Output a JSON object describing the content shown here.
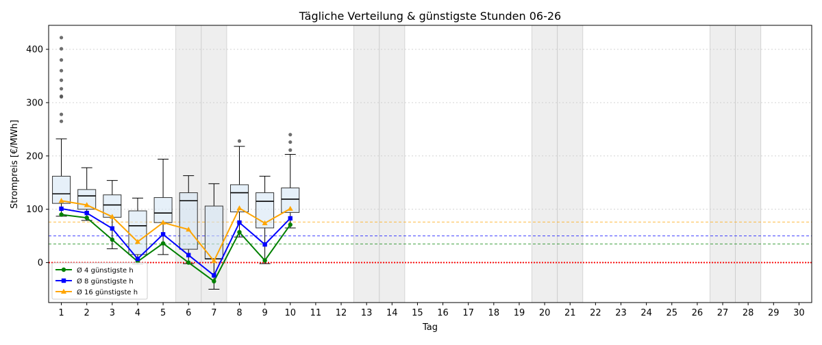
{
  "chart_data": {
    "type": "box",
    "title": "Tägliche Verteilung & günstigste Stunden 06-26",
    "xlabel": "Tag",
    "ylabel": "Strompreis [€/MWh]",
    "xlim": [
      0.5,
      30.5
    ],
    "ylim": [
      -75,
      445
    ],
    "x_ticks": [
      1,
      2,
      3,
      4,
      5,
      6,
      7,
      8,
      9,
      10,
      11,
      12,
      13,
      14,
      15,
      16,
      17,
      18,
      19,
      20,
      21,
      22,
      23,
      24,
      25,
      26,
      27,
      28,
      29,
      30
    ],
    "y_ticks": [
      0,
      100,
      200,
      300,
      400
    ],
    "grid": "horizontal dotted",
    "weekend_days": [
      6,
      7,
      13,
      14,
      20,
      21,
      27,
      28
    ],
    "boxes": [
      {
        "day": 1,
        "whisker_low": 87,
        "q1": 111,
        "median": 129,
        "q3": 162,
        "whisker_high": 232,
        "outliers": [
          265,
          278,
          311,
          312,
          326,
          342,
          360,
          380,
          401,
          422
        ]
      },
      {
        "day": 2,
        "whisker_low": 79,
        "q1": 100,
        "median": 125,
        "q3": 137,
        "whisker_high": 178,
        "outliers": []
      },
      {
        "day": 3,
        "whisker_low": 26,
        "q1": 85,
        "median": 108,
        "q3": 127,
        "whisker_high": 154,
        "outliers": []
      },
      {
        "day": 4,
        "whisker_low": -3,
        "q1": 15,
        "median": 69,
        "q3": 97,
        "whisker_high": 121,
        "outliers": []
      },
      {
        "day": 5,
        "whisker_low": 15,
        "q1": 75,
        "median": 93,
        "q3": 122,
        "whisker_high": 194,
        "outliers": []
      },
      {
        "day": 6,
        "whisker_low": -2,
        "q1": 25,
        "median": 116,
        "q3": 131,
        "whisker_high": 163,
        "outliers": []
      },
      {
        "day": 7,
        "whisker_low": -50,
        "q1": 7,
        "median": 7,
        "q3": 106,
        "whisker_high": 148,
        "outliers": []
      },
      {
        "day": 8,
        "whisker_low": 48,
        "q1": 95,
        "median": 131,
        "q3": 146,
        "whisker_high": 218,
        "outliers": [
          228
        ]
      },
      {
        "day": 9,
        "whisker_low": -2,
        "q1": 65,
        "median": 115,
        "q3": 131,
        "whisker_high": 162,
        "outliers": []
      },
      {
        "day": 10,
        "whisker_low": 65,
        "q1": 94,
        "median": 119,
        "q3": 140,
        "whisker_high": 203,
        "outliers": [
          211,
          226,
          240
        ]
      }
    ],
    "series": [
      {
        "name": "Ø 4 günstigste h",
        "color": "#008000",
        "marker": "circle",
        "x": [
          1,
          2,
          3,
          4,
          5,
          6,
          7,
          8,
          9,
          10
        ],
        "values": [
          90,
          84,
          43,
          2,
          36,
          0,
          -35,
          57,
          4,
          71
        ]
      },
      {
        "name": "Ø 8 günstigste h",
        "color": "#0000ff",
        "marker": "square",
        "x": [
          1,
          2,
          3,
          4,
          5,
          6,
          7,
          8,
          9,
          10
        ],
        "values": [
          101,
          93,
          64,
          7,
          53,
          14,
          -24,
          75,
          34,
          83
        ]
      },
      {
        "name": "Ø 16 günstigste h",
        "color": "#ffa500",
        "marker": "triangle",
        "x": [
          1,
          2,
          3,
          4,
          5,
          6,
          7,
          8,
          9,
          10
        ],
        "values": [
          116,
          108,
          86,
          39,
          75,
          62,
          3,
          102,
          74,
          101
        ]
      }
    ],
    "reference_lines": [
      {
        "value": 76,
        "color": "#ffa500",
        "style": "dashed"
      },
      {
        "value": 50,
        "color": "#0000ff",
        "style": "dashed"
      },
      {
        "value": 35,
        "color": "#008000",
        "style": "dashed"
      },
      {
        "value": 0,
        "color": "#ff0000",
        "style": "dotted"
      }
    ],
    "legend_position": "bottom-left"
  }
}
